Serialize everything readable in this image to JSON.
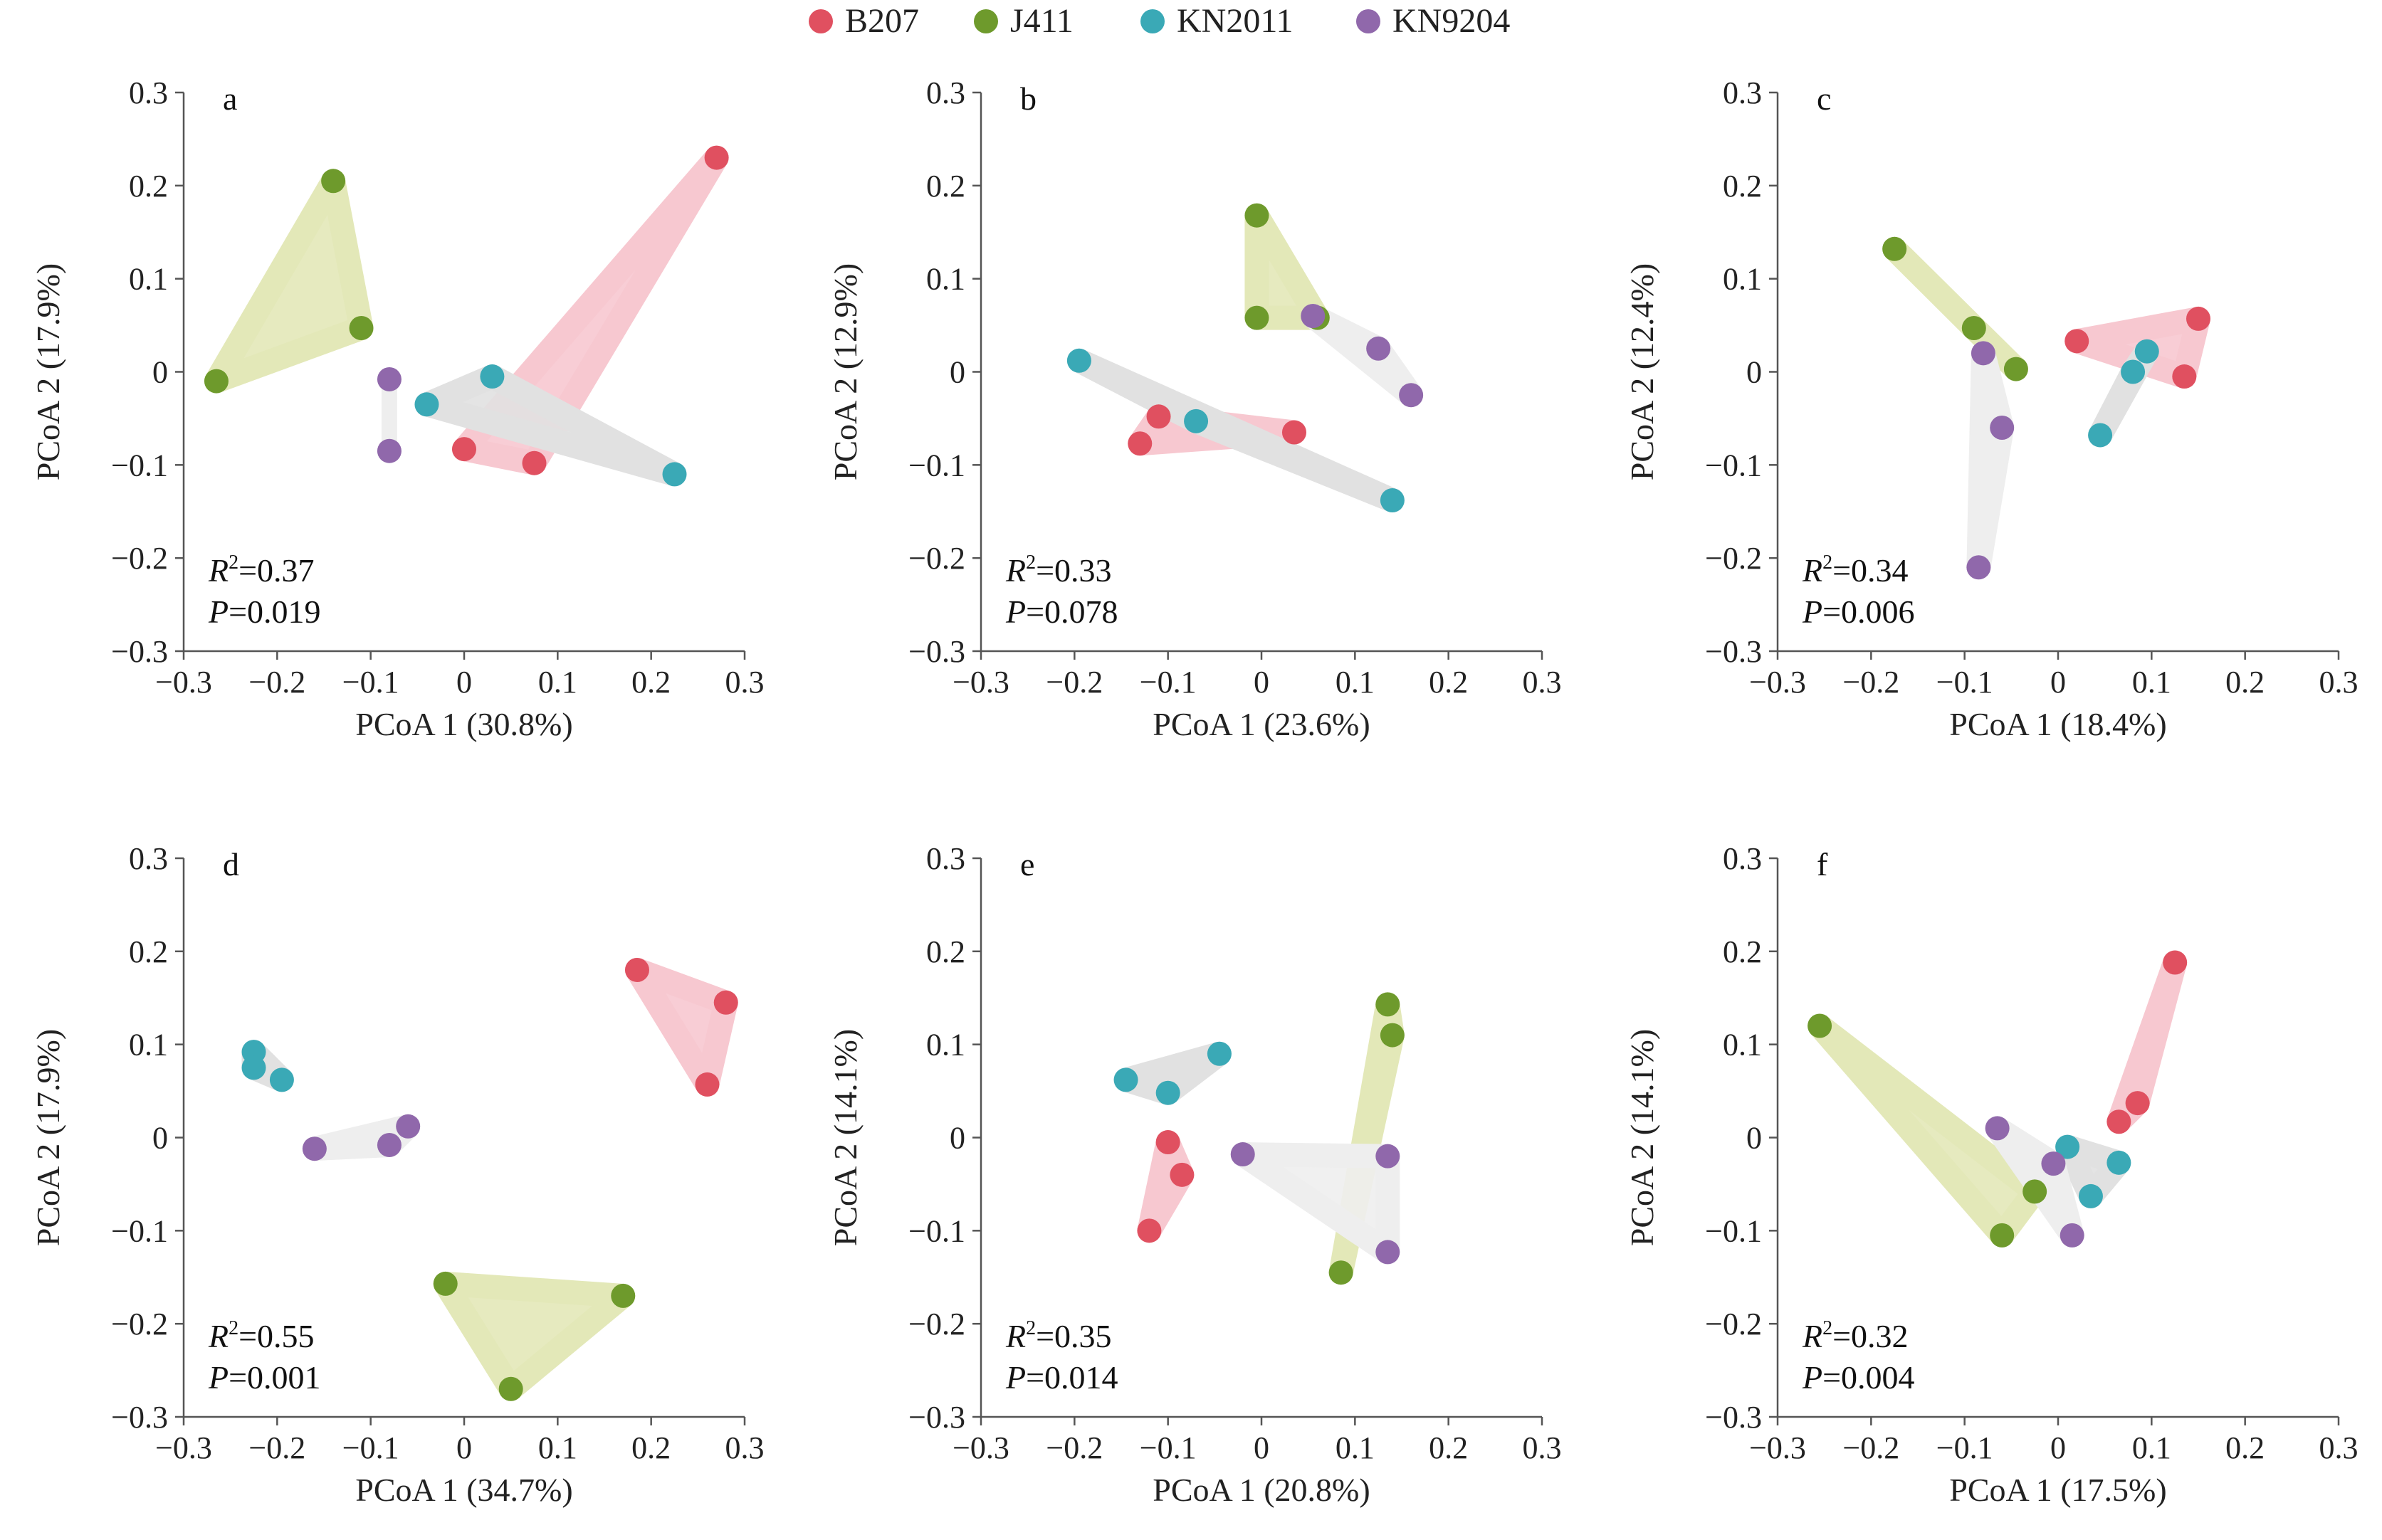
{
  "chart_data": [
    {
      "type": "scatter",
      "panel": "a",
      "xlabel": "PCoA 1 (30.8%)",
      "ylabel": "PCoA 2 (17.9%)",
      "xlim": [
        -0.3,
        0.3
      ],
      "ylim": [
        -0.3,
        0.3
      ],
      "xticks": [
        "−0.3",
        "−0.2",
        "−0.1",
        "0",
        "0.1",
        "0.2",
        "0.3"
      ],
      "yticks": [
        "0.3",
        "0.2",
        "0.1",
        "0",
        "−0.1",
        "−0.2",
        "−0.3"
      ],
      "r2": "=0.37",
      "p": "=0.019",
      "series": [
        {
          "name": "B207",
          "points": [
            [
              0.27,
              0.23
            ],
            [
              0.0,
              -0.083
            ],
            [
              0.075,
              -0.098
            ]
          ]
        },
        {
          "name": "J411",
          "points": [
            [
              -0.14,
              0.205
            ],
            [
              -0.11,
              0.047
            ],
            [
              -0.265,
              -0.01
            ]
          ]
        },
        {
          "name": "KN2011",
          "points": [
            [
              0.03,
              -0.005
            ],
            [
              -0.04,
              -0.035
            ],
            [
              0.225,
              -0.11
            ]
          ]
        },
        {
          "name": "KN9204",
          "points": [
            [
              -0.08,
              -0.008
            ],
            [
              -0.08,
              -0.085
            ]
          ]
        }
      ]
    },
    {
      "type": "scatter",
      "panel": "b",
      "xlabel": "PCoA 1 (23.6%)",
      "ylabel": "PCoA 2 (12.9%)",
      "xlim": [
        -0.3,
        0.3
      ],
      "ylim": [
        -0.3,
        0.3
      ],
      "xticks": [
        "−0.3",
        "−0.2",
        "−0.1",
        "0",
        "0.1",
        "0.2",
        "0.3"
      ],
      "yticks": [
        "0.3",
        "0.2",
        "0.1",
        "0",
        "−0.1",
        "−0.2",
        "−0.3"
      ],
      "r2": "=0.33",
      "p": "=0.078",
      "series": [
        {
          "name": "B207",
          "points": [
            [
              -0.11,
              -0.048
            ],
            [
              -0.13,
              -0.077
            ],
            [
              0.035,
              -0.065
            ]
          ]
        },
        {
          "name": "J411",
          "points": [
            [
              -0.005,
              0.168
            ],
            [
              -0.005,
              0.058
            ],
            [
              0.06,
              0.058
            ]
          ]
        },
        {
          "name": "KN2011",
          "points": [
            [
              -0.195,
              0.012
            ],
            [
              -0.07,
              -0.053
            ],
            [
              0.14,
              -0.138
            ]
          ]
        },
        {
          "name": "KN9204",
          "points": [
            [
              0.055,
              0.06
            ],
            [
              0.125,
              0.025
            ],
            [
              0.16,
              -0.025
            ]
          ]
        }
      ]
    },
    {
      "type": "scatter",
      "panel": "c",
      "xlabel": "PCoA 1 (18.4%)",
      "ylabel": "PCoA 2 (12.4%)",
      "xlim": [
        -0.3,
        0.3
      ],
      "ylim": [
        -0.3,
        0.3
      ],
      "xticks": [
        "−0.3",
        "−0.2",
        "−0.1",
        "0",
        "0.1",
        "0.2",
        "0.3"
      ],
      "yticks": [
        "0.3",
        "0.2",
        "0.1",
        "0",
        "−0.1",
        "−0.2",
        "−0.3"
      ],
      "r2": "=0.34",
      "p": "=0.006",
      "series": [
        {
          "name": "B207",
          "points": [
            [
              0.02,
              0.033
            ],
            [
              0.15,
              0.057
            ],
            [
              0.135,
              -0.005
            ]
          ]
        },
        {
          "name": "J411",
          "points": [
            [
              -0.175,
              0.132
            ],
            [
              -0.09,
              0.047
            ],
            [
              -0.045,
              0.003
            ]
          ]
        },
        {
          "name": "KN2011",
          "points": [
            [
              0.095,
              0.022
            ],
            [
              0.08,
              0.0
            ],
            [
              0.045,
              -0.068
            ]
          ]
        },
        {
          "name": "KN9204",
          "points": [
            [
              -0.08,
              0.02
            ],
            [
              -0.06,
              -0.06
            ],
            [
              -0.085,
              -0.21
            ]
          ]
        }
      ]
    },
    {
      "type": "scatter",
      "panel": "d",
      "xlabel": "PCoA 1 (34.7%)",
      "ylabel": "PCoA 2 (17.9%)",
      "xlim": [
        -0.3,
        0.3
      ],
      "ylim": [
        -0.3,
        0.3
      ],
      "xticks": [
        "−0.3",
        "−0.2",
        "−0.1",
        "0",
        "0.1",
        "0.2",
        "0.3"
      ],
      "yticks": [
        "0.3",
        "0.2",
        "0.1",
        "0",
        "−0.1",
        "−0.2",
        "−0.3"
      ],
      "r2": "=0.55",
      "p": "=0.001",
      "series": [
        {
          "name": "B207",
          "points": [
            [
              0.185,
              0.18
            ],
            [
              0.28,
              0.145
            ],
            [
              0.26,
              0.057
            ]
          ]
        },
        {
          "name": "J411",
          "points": [
            [
              -0.02,
              -0.157
            ],
            [
              0.17,
              -0.17
            ],
            [
              0.05,
              -0.27
            ]
          ]
        },
        {
          "name": "KN2011",
          "points": [
            [
              -0.225,
              0.092
            ],
            [
              -0.225,
              0.075
            ],
            [
              -0.195,
              0.062
            ]
          ]
        },
        {
          "name": "KN9204",
          "points": [
            [
              -0.16,
              -0.012
            ],
            [
              -0.08,
              -0.008
            ],
            [
              -0.06,
              0.012
            ]
          ]
        }
      ]
    },
    {
      "type": "scatter",
      "panel": "e",
      "xlabel": "PCoA 1 (20.8%)",
      "ylabel": "PCoA 2 (14.1%)",
      "xlim": [
        -0.3,
        0.3
      ],
      "ylim": [
        -0.3,
        0.3
      ],
      "xticks": [
        "−0.3",
        "−0.2",
        "−0.1",
        "0",
        "0.1",
        "0.2",
        "0.3"
      ],
      "yticks": [
        "0.3",
        "0.2",
        "0.1",
        "0",
        "−0.1",
        "−0.2",
        "−0.3"
      ],
      "r2": "=0.35",
      "p": "=0.014",
      "series": [
        {
          "name": "B207",
          "points": [
            [
              -0.1,
              -0.005
            ],
            [
              -0.085,
              -0.04
            ],
            [
              -0.12,
              -0.1
            ]
          ]
        },
        {
          "name": "J411",
          "points": [
            [
              0.135,
              0.143
            ],
            [
              0.14,
              0.11
            ],
            [
              0.085,
              -0.145
            ]
          ]
        },
        {
          "name": "KN2011",
          "points": [
            [
              -0.145,
              0.062
            ],
            [
              -0.1,
              0.048
            ],
            [
              -0.045,
              0.09
            ]
          ]
        },
        {
          "name": "KN9204",
          "points": [
            [
              -0.02,
              -0.018
            ],
            [
              0.135,
              -0.02
            ],
            [
              0.135,
              -0.123
            ]
          ]
        }
      ]
    },
    {
      "type": "scatter",
      "panel": "f",
      "xlabel": "PCoA 1 (17.5%)",
      "ylabel": "PCoA 2 (14.1%)",
      "xlim": [
        -0.3,
        0.3
      ],
      "ylim": [
        -0.3,
        0.3
      ],
      "xticks": [
        "−0.3",
        "−0.2",
        "−0.1",
        "0",
        "0.1",
        "0.2",
        "0.3"
      ],
      "yticks": [
        "0.3",
        "0.2",
        "0.1",
        "0",
        "−0.1",
        "−0.2",
        "−0.3"
      ],
      "r2": "=0.32",
      "p": "=0.004",
      "series": [
        {
          "name": "B207",
          "points": [
            [
              0.125,
              0.188
            ],
            [
              0.085,
              0.037
            ],
            [
              0.065,
              0.017
            ]
          ]
        },
        {
          "name": "J411",
          "points": [
            [
              -0.255,
              0.12
            ],
            [
              -0.025,
              -0.058
            ],
            [
              -0.06,
              -0.105
            ]
          ]
        },
        {
          "name": "KN2011",
          "points": [
            [
              0.01,
              -0.01
            ],
            [
              0.065,
              -0.027
            ],
            [
              0.035,
              -0.063
            ]
          ]
        },
        {
          "name": "KN9204",
          "points": [
            [
              -0.065,
              0.01
            ],
            [
              -0.005,
              -0.028
            ],
            [
              0.015,
              -0.105
            ]
          ]
        }
      ]
    }
  ],
  "legend": [
    {
      "name": "B207",
      "color": "#e05060"
    },
    {
      "name": "J411",
      "color": "#6e9a2c"
    },
    {
      "name": "KN2011",
      "color": "#3aa9b6"
    },
    {
      "name": "KN9204",
      "color": "#9068ab"
    }
  ],
  "hull_fills": {
    "B207": "#f7c8d0",
    "J411": "#e3e8b8",
    "KN2011": "#e1e1e1",
    "KN9204": "#eeeeee"
  },
  "labels": {
    "r2_symbol": "R",
    "r2_sup": "2",
    "p_symbol": "P"
  }
}
